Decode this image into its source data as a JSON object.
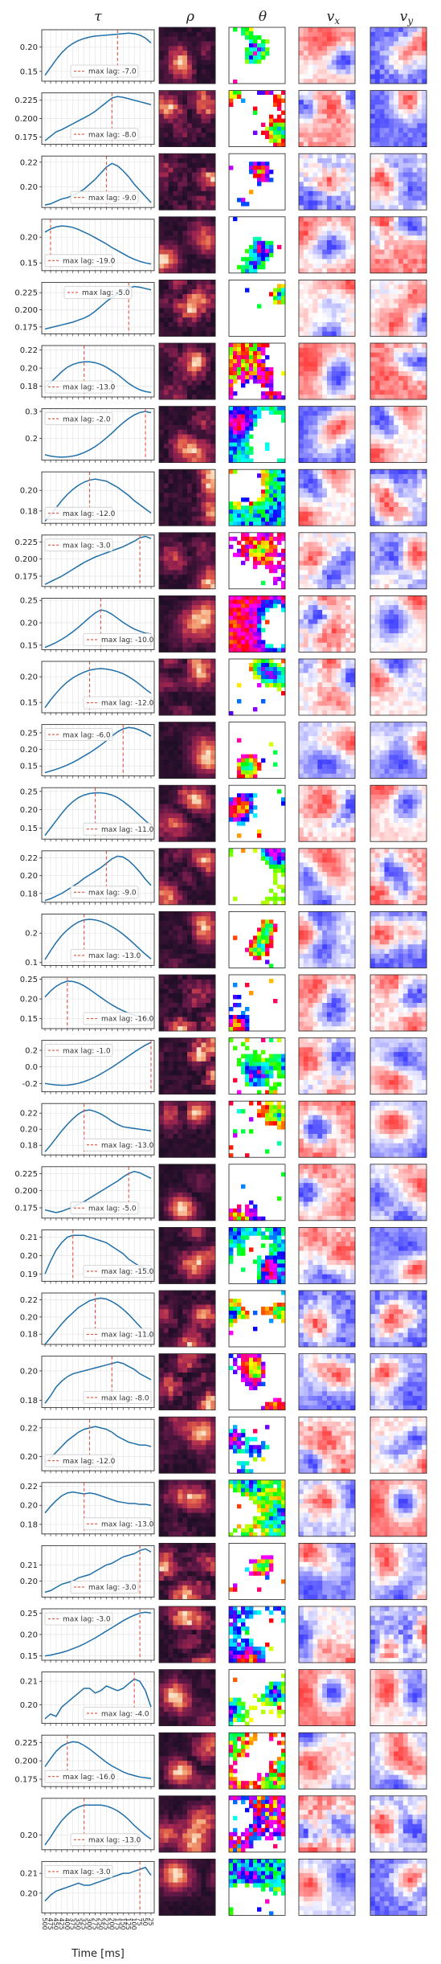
{
  "figure": {
    "column_titles": {
      "tau": "τ",
      "rho": "ρ",
      "theta": "θ",
      "vx_main": "v",
      "vx_sub": "x",
      "vy_main": "v",
      "vy_sub": "y"
    },
    "xlabel": "Time [ms]",
    "xticks": [
      "500",
      "475",
      "450",
      "425",
      "400",
      "375",
      "350",
      "325",
      "300",
      "275",
      "250",
      "225",
      "200",
      "175",
      "150",
      "125",
      "100",
      "75",
      "50",
      "25"
    ],
    "xtick_labels_visible": [
      "500",
      "475",
      "450",
      "425",
      "400",
      "375",
      "350",
      "325",
      "300",
      "275",
      "250",
      "225",
      "200",
      "175",
      "150",
      "125",
      "100",
      "75",
      "50",
      "25"
    ],
    "legend_prefix": "max lag: ",
    "colors": {
      "curve": "#1f6fa8",
      "lag_line": "#e8503a",
      "grid": "#e5e5e5"
    }
  },
  "chart_data": {
    "type": "line",
    "x_order": "descending",
    "panels": [
      {
        "lag": "-7.0",
        "lag_index": 13,
        "yticks": [
          "0.15",
          "0.20"
        ],
        "ylim": [
          0.13,
          0.235
        ],
        "legend": "bottom",
        "values": [
          0.142,
          0.158,
          0.174,
          0.188,
          0.199,
          0.207,
          0.213,
          0.217,
          0.22,
          0.222,
          0.223,
          0.224,
          0.225,
          0.226,
          0.227,
          0.228,
          0.227,
          0.224,
          0.218,
          0.208
        ]
      },
      {
        "lag": "-8.0",
        "lag_index": 12,
        "yticks": [
          "0.175",
          "0.200",
          "0.225"
        ],
        "ylim": [
          0.165,
          0.235
        ],
        "legend": "bottom",
        "values": [
          0.17,
          0.176,
          0.182,
          0.185,
          0.189,
          0.193,
          0.197,
          0.201,
          0.205,
          0.21,
          0.216,
          0.222,
          0.228,
          0.23,
          0.229,
          0.227,
          0.225,
          0.223,
          0.221,
          0.219
        ]
      },
      {
        "lag": "-9.0",
        "lag_index": 11,
        "yticks": [
          "0.20",
          "0.22"
        ],
        "ylim": [
          0.183,
          0.225
        ],
        "legend": "bottom",
        "values": [
          0.185,
          0.186,
          0.188,
          0.19,
          0.191,
          0.193,
          0.195,
          0.198,
          0.202,
          0.206,
          0.211,
          0.216,
          0.219,
          0.217,
          0.213,
          0.208,
          0.202,
          0.197,
          0.192,
          0.187
        ]
      },
      {
        "lag": "-19.0",
        "lag_index": 1,
        "yticks": [
          "0.15",
          "0.20"
        ],
        "ylim": [
          0.135,
          0.235
        ],
        "legend": "bottom-left",
        "values": [
          0.21,
          0.216,
          0.22,
          0.222,
          0.221,
          0.219,
          0.215,
          0.21,
          0.205,
          0.199,
          0.193,
          0.187,
          0.18,
          0.174,
          0.168,
          0.162,
          0.157,
          0.153,
          0.15,
          0.148
        ]
      },
      {
        "lag": "-5.0",
        "lag_index": 15,
        "yticks": [
          "0.175",
          "0.200",
          "0.225"
        ],
        "ylim": [
          0.165,
          0.24
        ],
        "legend": "top",
        "values": [
          0.172,
          0.174,
          0.176,
          0.178,
          0.18,
          0.182,
          0.185,
          0.188,
          0.192,
          0.198,
          0.205,
          0.212,
          0.218,
          0.223,
          0.228,
          0.232,
          0.234,
          0.233,
          0.231,
          0.229
        ]
      },
      {
        "lag": "-13.0",
        "lag_index": 7,
        "yticks": [
          "0.18",
          "0.20",
          "0.22"
        ],
        "ylim": [
          0.168,
          0.225
        ],
        "legend": "bottom-left",
        "values": [
          0.178,
          0.184,
          0.19,
          0.196,
          0.201,
          0.204,
          0.206,
          0.207,
          0.207,
          0.206,
          0.204,
          0.201,
          0.197,
          0.193,
          0.188,
          0.183,
          0.179,
          0.176,
          0.174,
          0.173
        ]
      },
      {
        "lag": "-2.0",
        "lag_index": 18,
        "yticks": [
          "0.2",
          "0.3"
        ],
        "ylim": [
          0.12,
          0.31
        ],
        "legend": "top-left",
        "values": [
          0.14,
          0.135,
          0.132,
          0.131,
          0.132,
          0.135,
          0.14,
          0.148,
          0.158,
          0.17,
          0.185,
          0.202,
          0.22,
          0.24,
          0.258,
          0.274,
          0.287,
          0.296,
          0.3,
          0.295
        ]
      },
      {
        "lag": "-12.0",
        "lag_index": 8,
        "yticks": [
          "0.18",
          "0.20"
        ],
        "ylim": [
          0.168,
          0.218
        ],
        "legend": "bottom-left",
        "values": [
          0.17,
          0.176,
          0.183,
          0.19,
          0.196,
          0.201,
          0.205,
          0.208,
          0.21,
          0.211,
          0.21,
          0.209,
          0.206,
          0.203,
          0.199,
          0.195,
          0.19,
          0.186,
          0.182,
          0.178
        ]
      },
      {
        "lag": "-3.0",
        "lag_index": 17,
        "yticks": [
          "0.175",
          "0.200",
          "0.225"
        ],
        "ylim": [
          0.16,
          0.235
        ],
        "legend": "top-left",
        "values": [
          0.163,
          0.167,
          0.171,
          0.175,
          0.18,
          0.185,
          0.19,
          0.195,
          0.199,
          0.203,
          0.206,
          0.209,
          0.212,
          0.215,
          0.218,
          0.222,
          0.226,
          0.231,
          0.233,
          0.23
        ]
      },
      {
        "lag": "-10.0",
        "lag_index": 10,
        "yticks": [
          "0.15",
          "0.20",
          "0.25"
        ],
        "ylim": [
          0.14,
          0.255
        ],
        "legend": "bottom-right",
        "values": [
          0.145,
          0.15,
          0.156,
          0.163,
          0.171,
          0.18,
          0.19,
          0.201,
          0.212,
          0.222,
          0.229,
          0.226,
          0.219,
          0.21,
          0.201,
          0.193,
          0.186,
          0.181,
          0.177,
          0.175
        ]
      },
      {
        "lag": "-12.0",
        "lag_index": 8,
        "yticks": [
          "0.15",
          "0.20"
        ],
        "ylim": [
          0.13,
          0.23
        ],
        "legend": "bottom-right",
        "values": [
          0.14,
          0.155,
          0.168,
          0.18,
          0.19,
          0.198,
          0.204,
          0.209,
          0.213,
          0.215,
          0.216,
          0.215,
          0.213,
          0.21,
          0.206,
          0.2,
          0.193,
          0.185,
          0.176,
          0.168
        ]
      },
      {
        "lag": "-6.0",
        "lag_index": 14,
        "yticks": [
          "0.15",
          "0.20",
          "0.25"
        ],
        "ylim": [
          0.12,
          0.275
        ],
        "legend": "top-left",
        "values": [
          0.13,
          0.135,
          0.14,
          0.146,
          0.153,
          0.161,
          0.17,
          0.18,
          0.19,
          0.201,
          0.213,
          0.226,
          0.24,
          0.253,
          0.262,
          0.266,
          0.264,
          0.258,
          0.25,
          0.24
        ]
      },
      {
        "lag": "-11.0",
        "lag_index": 9,
        "yticks": [
          "0.15",
          "0.20",
          "0.25"
        ],
        "ylim": [
          0.12,
          0.26
        ],
        "legend": "bottom-right",
        "values": [
          0.13,
          0.15,
          0.17,
          0.19,
          0.208,
          0.222,
          0.233,
          0.24,
          0.244,
          0.246,
          0.246,
          0.244,
          0.24,
          0.233,
          0.223,
          0.211,
          0.198,
          0.184,
          0.17,
          0.157
        ]
      },
      {
        "lag": "-9.0",
        "lag_index": 11,
        "yticks": [
          "0.18",
          "0.20",
          "0.22"
        ],
        "ylim": [
          0.17,
          0.228
        ],
        "legend": "bottom",
        "values": [
          0.172,
          0.174,
          0.177,
          0.18,
          0.184,
          0.188,
          0.192,
          0.197,
          0.201,
          0.205,
          0.209,
          0.214,
          0.219,
          0.222,
          0.221,
          0.217,
          0.211,
          0.204,
          0.196,
          0.189
        ]
      },
      {
        "lag": "-13.0",
        "lag_index": 7,
        "yticks": [
          "0.1",
          "0.2"
        ],
        "ylim": [
          0.09,
          0.265
        ],
        "legend": "bottom",
        "values": [
          0.11,
          0.14,
          0.168,
          0.192,
          0.211,
          0.226,
          0.238,
          0.245,
          0.247,
          0.245,
          0.24,
          0.232,
          0.222,
          0.21,
          0.196,
          0.18,
          0.163,
          0.145,
          0.128,
          0.112
        ]
      },
      {
        "lag": "-16.0",
        "lag_index": 4,
        "yticks": [
          "0.15",
          "0.20",
          "0.25"
        ],
        "ylim": [
          0.125,
          0.255
        ],
        "legend": "bottom-right",
        "values": [
          0.205,
          0.22,
          0.232,
          0.24,
          0.245,
          0.244,
          0.24,
          0.233,
          0.224,
          0.214,
          0.204,
          0.194,
          0.185,
          0.177,
          0.17,
          0.164,
          0.159,
          0.155,
          0.152,
          0.15
        ]
      },
      {
        "lag": "-1.0",
        "lag_index": 19,
        "yticks": [
          "-0.2",
          "0.0",
          "0.2"
        ],
        "ylim": [
          -0.3,
          0.32
        ],
        "legend": "top-left",
        "values": [
          -0.2,
          -0.21,
          -0.218,
          -0.222,
          -0.22,
          -0.212,
          -0.198,
          -0.178,
          -0.152,
          -0.121,
          -0.085,
          -0.046,
          -0.005,
          0.04,
          0.086,
          0.132,
          0.178,
          0.222,
          0.262,
          0.295
        ]
      },
      {
        "lag": "-13.0",
        "lag_index": 7,
        "yticks": [
          "0.18",
          "0.20",
          "0.22"
        ],
        "ylim": [
          0.168,
          0.232
        ],
        "legend": "bottom-right",
        "values": [
          0.172,
          0.18,
          0.189,
          0.198,
          0.206,
          0.213,
          0.219,
          0.223,
          0.224,
          0.222,
          0.219,
          0.215,
          0.21,
          0.206,
          0.203,
          0.202,
          0.201,
          0.2,
          0.199,
          0.198
        ]
      },
      {
        "lag": "-5.0",
        "lag_index": 15,
        "yticks": [
          "0.175",
          "0.200",
          "0.225"
        ],
        "ylim": [
          0.16,
          0.235
        ],
        "legend": "bottom",
        "values": [
          0.172,
          0.17,
          0.168,
          0.17,
          0.173,
          0.176,
          0.18,
          0.184,
          0.189,
          0.194,
          0.199,
          0.204,
          0.209,
          0.214,
          0.22,
          0.225,
          0.228,
          0.226,
          0.222,
          0.218
        ]
      },
      {
        "lag": "-15.0",
        "lag_index": 5,
        "yticks": [
          "0.19",
          "0.20",
          "0.21"
        ],
        "ylim": [
          0.186,
          0.214
        ],
        "legend": "bottom-right",
        "values": [
          0.19,
          0.197,
          0.203,
          0.207,
          0.21,
          0.211,
          0.211,
          0.211,
          0.21,
          0.209,
          0.208,
          0.207,
          0.205,
          0.203,
          0.201,
          0.198,
          0.196,
          0.194,
          0.193,
          0.192
        ]
      },
      {
        "lag": "-11.0",
        "lag_index": 9,
        "yticks": [
          "0.18",
          "0.20",
          "0.22"
        ],
        "ylim": [
          0.168,
          0.228
        ],
        "legend": "bottom-right",
        "values": [
          0.168,
          0.176,
          0.184,
          0.192,
          0.199,
          0.205,
          0.211,
          0.215,
          0.219,
          0.221,
          0.222,
          0.221,
          0.218,
          0.214,
          0.209,
          0.203,
          0.196,
          0.189,
          0.182,
          0.176
        ]
      },
      {
        "lag": "-8.0",
        "lag_index": 12,
        "yticks": [
          "0.18",
          "0.20"
        ],
        "ylim": [
          0.175,
          0.21
        ],
        "legend": "bottom-right",
        "values": [
          0.178,
          0.183,
          0.189,
          0.193,
          0.196,
          0.198,
          0.199,
          0.2,
          0.201,
          0.202,
          0.203,
          0.204,
          0.205,
          0.206,
          0.205,
          0.203,
          0.201,
          0.198,
          0.196,
          0.194
        ]
      },
      {
        "lag": "-12.0",
        "lag_index": 8,
        "yticks": [
          "0.20",
          "0.22"
        ],
        "ylim": [
          0.19,
          0.226
        ],
        "legend": "bottom-left",
        "values": [
          0.196,
          0.199,
          0.203,
          0.207,
          0.211,
          0.214,
          0.217,
          0.219,
          0.22,
          0.221,
          0.22,
          0.219,
          0.217,
          0.214,
          0.212,
          0.21,
          0.209,
          0.208,
          0.208,
          0.207
        ]
      },
      {
        "lag": "-13.0",
        "lag_index": 7,
        "yticks": [
          "0.18",
          "0.20",
          "0.22"
        ],
        "ylim": [
          0.17,
          0.224
        ],
        "legend": "bottom-right",
        "values": [
          0.192,
          0.199,
          0.205,
          0.21,
          0.213,
          0.214,
          0.213,
          0.212,
          0.213,
          0.212,
          0.21,
          0.208,
          0.206,
          0.204,
          0.203,
          0.202,
          0.202,
          0.201,
          0.201,
          0.2
        ]
      },
      {
        "lag": "-3.0",
        "lag_index": 17,
        "yticks": [
          "0.20",
          "0.21"
        ],
        "ylim": [
          0.19,
          0.222
        ],
        "legend": "bottom",
        "values": [
          0.193,
          0.194,
          0.196,
          0.198,
          0.199,
          0.2,
          0.202,
          0.203,
          0.204,
          0.206,
          0.208,
          0.21,
          0.211,
          0.213,
          0.215,
          0.216,
          0.217,
          0.219,
          0.22,
          0.218
        ]
      },
      {
        "lag": "-3.0",
        "lag_index": 17,
        "yticks": [
          "0.15",
          "0.20",
          "0.25"
        ],
        "ylim": [
          0.14,
          0.26
        ],
        "legend": "top-left",
        "values": [
          0.15,
          0.152,
          0.155,
          0.158,
          0.162,
          0.167,
          0.172,
          0.178,
          0.185,
          0.192,
          0.2,
          0.208,
          0.216,
          0.224,
          0.232,
          0.239,
          0.245,
          0.25,
          0.252,
          0.25
        ]
      },
      {
        "lag": "-4.0",
        "lag_index": 16,
        "yticks": [
          "0.20",
          "0.21"
        ],
        "ylim": [
          0.192,
          0.214
        ],
        "legend": "bottom-right",
        "values": [
          0.194,
          0.196,
          0.195,
          0.199,
          0.201,
          0.203,
          0.205,
          0.207,
          0.207,
          0.205,
          0.206,
          0.208,
          0.207,
          0.206,
          0.207,
          0.209,
          0.211,
          0.21,
          0.206,
          0.199
        ]
      },
      {
        "lag": "-16.0",
        "lag_index": 4,
        "yticks": [
          "0.175",
          "0.200",
          "0.225"
        ],
        "ylim": [
          0.165,
          0.235
        ],
        "legend": "bottom-left",
        "values": [
          0.192,
          0.203,
          0.213,
          0.22,
          0.224,
          0.226,
          0.225,
          0.221,
          0.216,
          0.21,
          0.204,
          0.198,
          0.193,
          0.189,
          0.185,
          0.182,
          0.18,
          0.178,
          0.177,
          0.176
        ]
      },
      {
        "lag": "-13.0",
        "lag_index": 7,
        "yticks": [
          "0.20"
        ],
        "ylim": [
          0.185,
          0.238
        ],
        "legend": "bottom",
        "values": [
          0.19,
          0.198,
          0.207,
          0.215,
          0.221,
          0.226,
          0.229,
          0.231,
          0.231,
          0.231,
          0.231,
          0.23,
          0.228,
          0.225,
          0.221,
          0.216,
          0.21,
          0.205,
          0.2,
          0.196
        ]
      },
      {
        "lag": "-3.0",
        "lag_index": 17,
        "yticks": [
          "0.20",
          "0.21"
        ],
        "ylim": [
          0.19,
          0.216
        ],
        "legend": "top-left",
        "values": [
          0.196,
          0.199,
          0.201,
          0.202,
          0.203,
          0.204,
          0.205,
          0.204,
          0.204,
          0.205,
          0.206,
          0.207,
          0.208,
          0.209,
          0.21,
          0.21,
          0.211,
          0.212,
          0.213,
          0.209
        ]
      }
    ]
  }
}
